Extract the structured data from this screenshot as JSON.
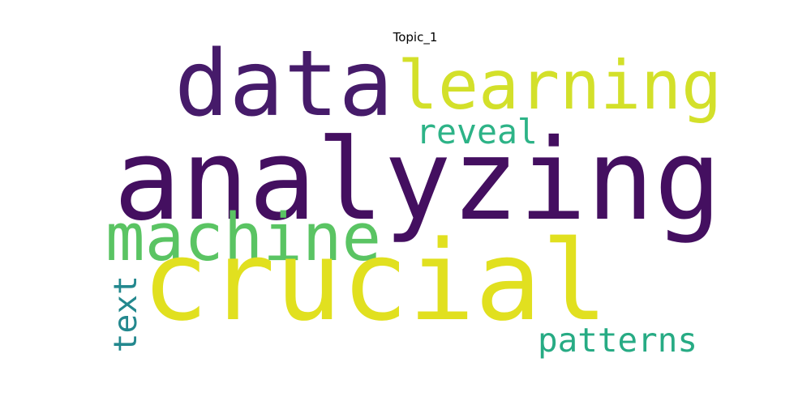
{
  "title": "Topic_1",
  "words": [
    {
      "text": "analyzing",
      "color": "#440f60"
    },
    {
      "text": "data",
      "color": "#461b6a"
    },
    {
      "text": "learning",
      "color": "#d3e02a"
    },
    {
      "text": "reveal",
      "color": "#2db387"
    },
    {
      "text": "machine",
      "color": "#5ac463"
    },
    {
      "text": "crucial",
      "color": "#e1e01f"
    },
    {
      "text": "text",
      "color": "#23888e"
    },
    {
      "text": "patterns",
      "color": "#27ab84"
    }
  ]
}
